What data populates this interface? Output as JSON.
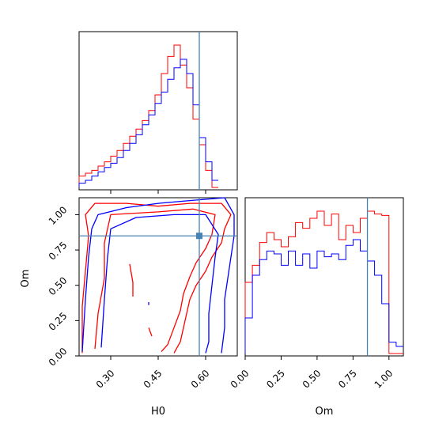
{
  "chart_data": {
    "type": "corner",
    "truth": {
      "H0": 0.58,
      "Om": 0.85
    },
    "colors": {
      "red": "#ff0000",
      "blue": "#0000ff",
      "truth": "#4682b4"
    },
    "panels": [
      {
        "id": "hist_H0",
        "type": "histogram",
        "xlim": [
          0.2,
          0.7
        ],
        "x_ticks": [
          0.3,
          0.45,
          0.6
        ],
        "series": [
          {
            "color": "red",
            "step": 0.02,
            "values": [
              0.08,
              0.1,
              0.12,
              0.15,
              0.18,
              0.22,
              0.26,
              0.31,
              0.36,
              0.41,
              0.47,
              0.54,
              0.65,
              0.8,
              0.92,
              1.0,
              0.86,
              0.7,
              0.48,
              0.3,
              0.12,
              0.0
            ]
          },
          {
            "color": "blue",
            "step": 0.02,
            "values": [
              0.03,
              0.05,
              0.08,
              0.11,
              0.14,
              0.17,
              0.21,
              0.26,
              0.31,
              0.37,
              0.44,
              0.51,
              0.59,
              0.67,
              0.76,
              0.84,
              0.9,
              0.8,
              0.58,
              0.35,
              0.18,
              0.05
            ]
          }
        ]
      },
      {
        "id": "contour_H0_Om",
        "type": "contour",
        "xlim": [
          0.2,
          0.7
        ],
        "ylim": [
          0.0,
          1.12
        ],
        "x_ticks": [
          0.3,
          0.45,
          0.6
        ],
        "y_ticks": [
          0.0,
          0.25,
          0.5,
          0.75,
          1.0
        ],
        "x_tick_labels": [
          "0.30",
          "0.45",
          "0.60"
        ],
        "y_tick_labels": [
          "0.00",
          "0.25",
          "0.50",
          "0.75",
          "1.00"
        ],
        "xlabel": "H0",
        "ylabel": "Om",
        "contours": [
          {
            "color": "red",
            "points": [
              [
                0.21,
                0.02
              ],
              [
                0.21,
                0.35
              ],
              [
                0.22,
                0.6
              ],
              [
                0.23,
                0.85
              ],
              [
                0.22,
                1.0
              ],
              [
                0.25,
                1.08
              ],
              [
                0.35,
                1.08
              ],
              [
                0.45,
                1.06
              ],
              [
                0.55,
                1.08
              ],
              [
                0.65,
                1.08
              ],
              [
                0.68,
                1.0
              ],
              [
                0.66,
                0.9
              ],
              [
                0.65,
                0.8
              ],
              [
                0.62,
                0.7
              ],
              [
                0.6,
                0.6
              ],
              [
                0.57,
                0.5
              ],
              [
                0.55,
                0.4
              ],
              [
                0.54,
                0.3
              ],
              [
                0.53,
                0.2
              ],
              [
                0.52,
                0.1
              ],
              [
                0.5,
                0.02
              ]
            ]
          },
          {
            "color": "red",
            "points": [
              [
                0.25,
                0.05
              ],
              [
                0.26,
                0.3
              ],
              [
                0.28,
                0.55
              ],
              [
                0.28,
                0.8
              ],
              [
                0.3,
                1.0
              ],
              [
                0.45,
                1.02
              ],
              [
                0.56,
                1.04
              ],
              [
                0.63,
                1.0
              ],
              [
                0.62,
                0.86
              ],
              [
                0.6,
                0.76
              ],
              [
                0.57,
                0.66
              ],
              [
                0.55,
                0.56
              ],
              [
                0.53,
                0.44
              ],
              [
                0.52,
                0.32
              ],
              [
                0.5,
                0.2
              ],
              [
                0.48,
                0.08
              ],
              [
                0.46,
                0.03
              ]
            ]
          },
          {
            "color": "red",
            "points": [
              [
                0.36,
                0.65
              ],
              [
                0.37,
                0.52
              ],
              [
                0.37,
                0.42
              ]
            ]
          },
          {
            "color": "red",
            "points": [
              [
                0.42,
                0.2
              ],
              [
                0.43,
                0.14
              ]
            ]
          },
          {
            "color": "blue",
            "points": [
              [
                0.21,
                0.03
              ],
              [
                0.22,
                0.4
              ],
              [
                0.23,
                0.7
              ],
              [
                0.24,
                0.9
              ],
              [
                0.26,
                1.0
              ],
              [
                0.35,
                1.05
              ],
              [
                0.45,
                1.08
              ],
              [
                0.55,
                1.1
              ],
              [
                0.66,
                1.12
              ],
              [
                0.69,
                1.0
              ],
              [
                0.69,
                0.85
              ],
              [
                0.68,
                0.7
              ],
              [
                0.67,
                0.55
              ],
              [
                0.66,
                0.4
              ],
              [
                0.66,
                0.2
              ],
              [
                0.65,
                0.02
              ]
            ]
          },
          {
            "color": "blue",
            "points": [
              [
                0.27,
                0.06
              ],
              [
                0.28,
                0.4
              ],
              [
                0.29,
                0.7
              ],
              [
                0.3,
                0.9
              ],
              [
                0.38,
                0.98
              ],
              [
                0.5,
                1.0
              ],
              [
                0.6,
                1.0
              ],
              [
                0.64,
                0.86
              ],
              [
                0.63,
                0.7
              ],
              [
                0.62,
                0.5
              ],
              [
                0.61,
                0.3
              ],
              [
                0.61,
                0.1
              ],
              [
                0.6,
                0.02
              ]
            ]
          },
          {
            "color": "blue",
            "points": [
              [
                0.42,
                0.38
              ],
              [
                0.42,
                0.36
              ]
            ]
          }
        ]
      },
      {
        "id": "hist_Om",
        "type": "histogram",
        "xlim": [
          0.0,
          1.1
        ],
        "x_ticks": [
          0.0,
          0.25,
          0.5,
          0.75,
          1.0
        ],
        "x_tick_labels": [
          "0.00",
          "0.25",
          "0.50",
          "0.75",
          "1.00"
        ],
        "xlabel": "Om",
        "series": [
          {
            "color": "red",
            "step": 0.05,
            "values": [
              0.5,
              0.62,
              0.78,
              0.85,
              0.8,
              0.75,
              0.82,
              0.92,
              0.88,
              0.95,
              1.0,
              0.9,
              0.98,
              0.8,
              0.9,
              0.85,
              0.95,
              1.0,
              0.98,
              0.97,
              0.0,
              0.0
            ]
          },
          {
            "color": "blue",
            "step": 0.05,
            "values": [
              0.25,
              0.55,
              0.66,
              0.72,
              0.7,
              0.62,
              0.72,
              0.62,
              0.7,
              0.6,
              0.72,
              0.68,
              0.7,
              0.66,
              0.76,
              0.8,
              0.72,
              0.65,
              0.55,
              0.35,
              0.08,
              0.05
            ]
          }
        ]
      }
    ]
  }
}
